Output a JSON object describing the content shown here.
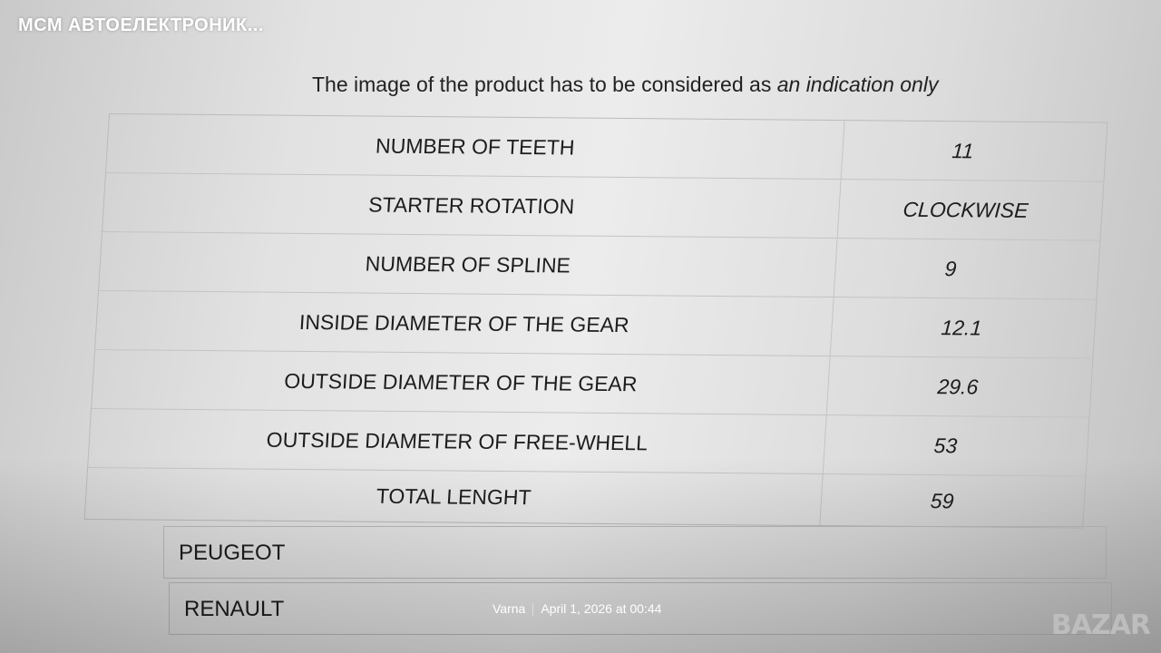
{
  "seller_name": "МСМ АВТОЕЛЕКТРОНИК...",
  "notice": {
    "prefix": "The image of the product has to be considered as ",
    "emphasis": "an indication only"
  },
  "specs": [
    {
      "label": "NUMBER OF TEETH",
      "value": "11"
    },
    {
      "label": "STARTER ROTATION",
      "value": "CLOCKWISE"
    },
    {
      "label": "NUMBER OF SPLINE",
      "value": "9"
    },
    {
      "label": "INSIDE DIAMETER OF THE GEAR",
      "value": "12.1"
    },
    {
      "label": "OUTSIDE DIAMETER OF THE GEAR",
      "value": "29.6"
    },
    {
      "label": "OUTSIDE DIAMETER OF FREE-WHELL",
      "value": "53"
    },
    {
      "label": "TOTAL LENGHT",
      "value": "59"
    }
  ],
  "makes": [
    "PEUGEOT",
    "RENAULT"
  ],
  "meta": {
    "location": "Varna",
    "date": "April 1, 2026 at 00:44"
  },
  "watermark": "BAZAR"
}
